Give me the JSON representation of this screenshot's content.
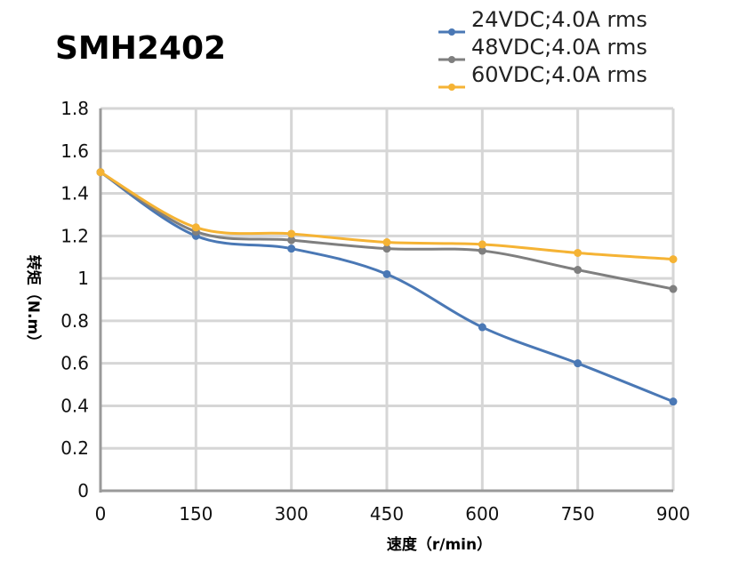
{
  "chart_data": {
    "type": "line",
    "title": "SMH2402",
    "xlabel": "速度（r/min）",
    "ylabel": "转矩（N.m）",
    "x": [
      0,
      150,
      300,
      450,
      600,
      750,
      900
    ],
    "xlim": [
      0,
      900
    ],
    "ylim": [
      0,
      1.8
    ],
    "xticks": [
      "0",
      "150",
      "300",
      "450",
      "600",
      "750",
      "900"
    ],
    "yticks": [
      "0",
      "0.2",
      "0.4",
      "0.6",
      "0.8",
      "1",
      "1.2",
      "1.4",
      "1.6",
      "1.8"
    ],
    "grid": true,
    "smooth": true,
    "legend_position": "top-right",
    "series": [
      {
        "name": "24VDC;4.0A rms",
        "color": "#4a78b5",
        "values": [
          1.5,
          1.2,
          1.14,
          1.02,
          0.77,
          0.6,
          0.42
        ]
      },
      {
        "name": "48VDC;4.0A rms",
        "color": "#7f7f7f",
        "values": [
          1.5,
          1.22,
          1.18,
          1.14,
          1.13,
          1.04,
          0.95
        ]
      },
      {
        "name": "60VDC;4.0A rms",
        "color": "#f5b334",
        "values": [
          1.5,
          1.24,
          1.21,
          1.17,
          1.16,
          1.12,
          1.09
        ]
      }
    ]
  }
}
